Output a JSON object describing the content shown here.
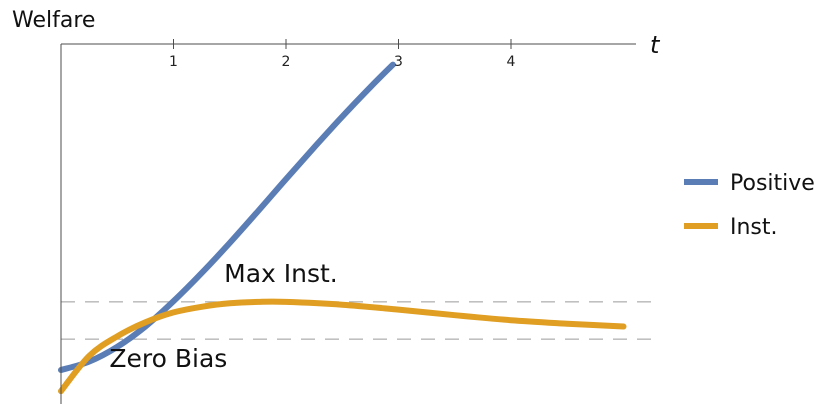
{
  "chart_data": {
    "type": "line",
    "ylabel": "Welfare",
    "xlabel": "t",
    "x_ticks": [
      1,
      2,
      3,
      4
    ],
    "xlim": [
      0,
      5.05
    ],
    "ylim": [
      -0.4,
      5.3
    ],
    "grid": false,
    "legend_position": "right",
    "series": [
      {
        "name": "Positive",
        "color": "#5b7db5",
        "x": [
          0,
          0.25,
          0.5,
          0.75,
          1.0,
          1.25,
          1.5,
          1.75,
          2.0,
          2.25,
          2.5,
          2.75,
          2.95
        ],
        "y": [
          0.0,
          0.12,
          0.33,
          0.62,
          0.98,
          1.38,
          1.81,
          2.26,
          2.72,
          3.17,
          3.61,
          4.03,
          4.35
        ]
      },
      {
        "name": "Inst.",
        "color": "#e09e22",
        "x": [
          0,
          0.25,
          0.5,
          0.75,
          1.0,
          1.25,
          1.5,
          1.75,
          2.0,
          2.5,
          3.0,
          3.5,
          4.0,
          4.5,
          5.0
        ],
        "y": [
          -0.3,
          0.2,
          0.48,
          0.68,
          0.82,
          0.9,
          0.95,
          0.97,
          0.97,
          0.93,
          0.86,
          0.78,
          0.71,
          0.66,
          0.62
        ]
      }
    ],
    "reference_lines": [
      {
        "label": "Max Inst.",
        "y": 0.97,
        "label_x": 1.45
      },
      {
        "label": "Zero Bias",
        "y": 0.44,
        "label_x": 0.43
      }
    ]
  }
}
